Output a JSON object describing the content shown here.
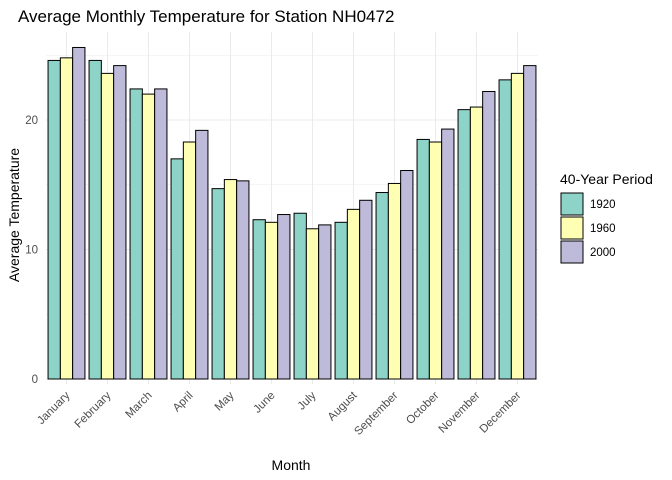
{
  "chart_data": {
    "type": "bar",
    "title": "Average Monthly Temperature for Station NH0472",
    "xlabel": "Month",
    "ylabel": "Average Temperature",
    "categories": [
      "January",
      "February",
      "March",
      "April",
      "May",
      "June",
      "July",
      "August",
      "September",
      "October",
      "November",
      "December"
    ],
    "series": [
      {
        "name": "1920",
        "color": "#8DD3C7",
        "values": [
          24.6,
          24.6,
          22.4,
          17.0,
          14.7,
          12.3,
          12.8,
          12.1,
          14.4,
          18.5,
          20.8,
          23.1
        ]
      },
      {
        "name": "1960",
        "color": "#FFFFB3",
        "values": [
          24.8,
          23.6,
          22.0,
          18.3,
          15.4,
          12.1,
          11.6,
          13.1,
          15.1,
          18.3,
          21.0,
          23.6
        ]
      },
      {
        "name": "2000",
        "color": "#BEBADA",
        "values": [
          25.6,
          24.2,
          22.4,
          19.2,
          15.3,
          12.7,
          11.9,
          13.8,
          16.1,
          19.3,
          22.2,
          24.2
        ]
      }
    ],
    "yticks": [
      0,
      10,
      20
    ],
    "ylim": [
      0,
      26.5
    ],
    "legend": {
      "title": "40-Year Period",
      "placement": "right"
    },
    "grid": true
  }
}
